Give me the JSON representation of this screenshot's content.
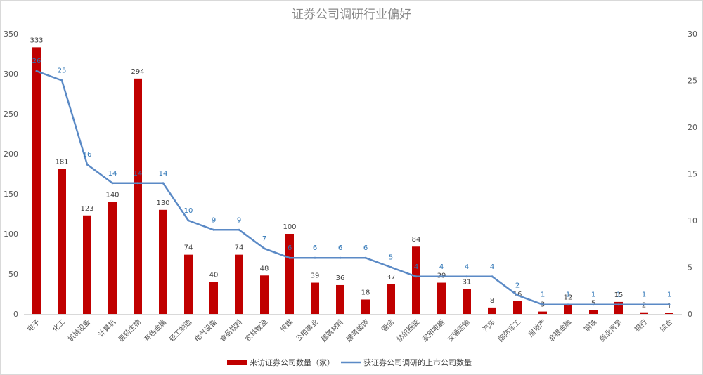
{
  "chart_data": {
    "type": "bar",
    "title": "证券公司调研行业偏好",
    "categories": [
      "电子",
      "化工",
      "机械设备",
      "计算机",
      "医药生物",
      "有色金属",
      "轻工制造",
      "电气设备",
      "食品饮料",
      "农林牧渔",
      "传媒",
      "公用事业",
      "建筑材料",
      "建筑装饰",
      "通信",
      "纺织服装",
      "家用电器",
      "交通运输",
      "汽车",
      "国防军工",
      "房地产",
      "非银金融",
      "钢铁",
      "商业贸易",
      "银行",
      "综合"
    ],
    "series": [
      {
        "name": "来访证券公司数量（家）",
        "type": "bar",
        "axis": "left",
        "color": "#c00000",
        "values": [
          333,
          181,
          123,
          140,
          294,
          130,
          74,
          40,
          74,
          48,
          100,
          39,
          36,
          18,
          37,
          84,
          39,
          31,
          8,
          16,
          3,
          12,
          5,
          15,
          2,
          1
        ]
      },
      {
        "name": "获证券公司调研的上市公司数量",
        "type": "line",
        "axis": "right",
        "color": "#5b8ac6",
        "values": [
          26,
          25,
          16,
          14,
          14,
          14,
          10,
          9,
          9,
          7,
          6,
          6,
          6,
          6,
          5,
          4,
          4,
          4,
          4,
          2,
          1,
          1,
          1,
          1,
          1,
          1
        ]
      }
    ],
    "y_left": {
      "min": 0,
      "max": 350,
      "ticks": [
        0,
        50,
        100,
        150,
        200,
        250,
        300,
        350
      ]
    },
    "y_right": {
      "min": 0,
      "max": 30,
      "ticks": [
        0,
        5,
        10,
        15,
        20,
        25,
        30
      ]
    },
    "grid": false,
    "legend_position": "bottom"
  }
}
